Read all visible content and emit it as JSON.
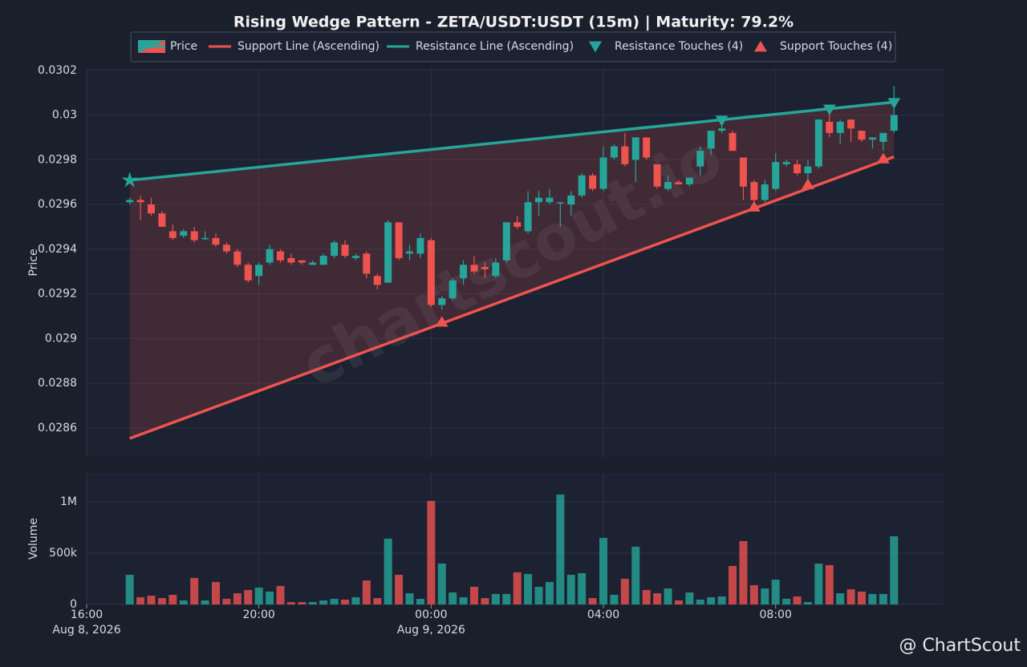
{
  "chart_data": [
    {
      "type": "candlestick",
      "title": "Rising Wedge Pattern - ZETA/USDT:USDT (15m) | Maturity: 79.2%",
      "y_label": "Price",
      "watermark": "chartscout.io",
      "footer": "@ ChartScout",
      "grid": true,
      "up_color": "#26a69a",
      "down_color": "#ef5350",
      "xlim": [
        "2026-08-08T16:00",
        "2026-08-09T11:54"
      ],
      "ylim": [
        0.02847,
        0.03021
      ],
      "yticks": [
        0.0286,
        0.0288,
        0.029,
        0.0292,
        0.0294,
        0.0296,
        0.0298,
        0.03,
        0.0302
      ],
      "x": [
        "2026-08-08T17:00",
        "2026-08-08T17:15",
        "2026-08-08T17:30",
        "2026-08-08T17:45",
        "2026-08-08T18:00",
        "2026-08-08T18:15",
        "2026-08-08T18:30",
        "2026-08-08T18:45",
        "2026-08-08T19:00",
        "2026-08-08T19:15",
        "2026-08-08T19:30",
        "2026-08-08T19:45",
        "2026-08-08T20:00",
        "2026-08-08T20:15",
        "2026-08-08T20:30",
        "2026-08-08T20:45",
        "2026-08-08T21:00",
        "2026-08-08T21:15",
        "2026-08-08T21:30",
        "2026-08-08T21:45",
        "2026-08-08T22:00",
        "2026-08-08T22:15",
        "2026-08-08T22:30",
        "2026-08-08T22:45",
        "2026-08-08T23:00",
        "2026-08-08T23:15",
        "2026-08-08T23:30",
        "2026-08-08T23:45",
        "2026-08-09T00:00",
        "2026-08-09T00:15",
        "2026-08-09T00:30",
        "2026-08-09T00:45",
        "2026-08-09T01:00",
        "2026-08-09T01:15",
        "2026-08-09T01:30",
        "2026-08-09T01:45",
        "2026-08-09T02:00",
        "2026-08-09T02:15",
        "2026-08-09T02:30",
        "2026-08-09T02:45",
        "2026-08-09T03:00",
        "2026-08-09T03:15",
        "2026-08-09T03:30",
        "2026-08-09T03:45",
        "2026-08-09T04:00",
        "2026-08-09T04:15",
        "2026-08-09T04:30",
        "2026-08-09T04:45",
        "2026-08-09T05:00",
        "2026-08-09T05:15",
        "2026-08-09T05:30",
        "2026-08-09T05:45",
        "2026-08-09T06:00",
        "2026-08-09T06:15",
        "2026-08-09T06:30",
        "2026-08-09T06:45",
        "2026-08-09T07:00",
        "2026-08-09T07:15",
        "2026-08-09T07:30",
        "2026-08-09T07:45",
        "2026-08-09T08:00",
        "2026-08-09T08:15",
        "2026-08-09T08:30",
        "2026-08-09T08:45",
        "2026-08-09T09:00",
        "2026-08-09T09:15",
        "2026-08-09T09:30",
        "2026-08-09T09:45",
        "2026-08-09T10:00",
        "2026-08-09T10:15",
        "2026-08-09T10:30",
        "2026-08-09T10:45"
      ],
      "candles": {
        "name": "Price",
        "open": [
          0.02961,
          0.02962,
          0.0296,
          0.02956,
          0.02948,
          0.02946,
          0.02948,
          0.02945,
          0.02945,
          0.02942,
          0.02939,
          0.02933,
          0.02928,
          0.02934,
          0.02939,
          0.02936,
          0.02935,
          0.02933,
          0.02933,
          0.02937,
          0.02942,
          0.02936,
          0.02938,
          0.02928,
          0.02925,
          0.02952,
          0.02938,
          0.02938,
          0.02944,
          0.02915,
          0.02918,
          0.02927,
          0.02933,
          0.02932,
          0.02928,
          0.02935,
          0.02952,
          0.02948,
          0.02961,
          0.02961,
          0.02961,
          0.0296,
          0.02964,
          0.02973,
          0.02967,
          0.02981,
          0.02986,
          0.0298,
          0.0299,
          0.02978,
          0.02967,
          0.0297,
          0.02969,
          0.02977,
          0.02985,
          0.02993,
          0.02992,
          0.02981,
          0.0297,
          0.02962,
          0.02967,
          0.02978,
          0.02978,
          0.02974,
          0.02977,
          0.02997,
          0.02992,
          0.02998,
          0.02993,
          0.02989,
          0.02988,
          0.02993
        ],
        "high": [
          0.02963,
          0.02964,
          0.02963,
          0.02957,
          0.02951,
          0.02949,
          0.0295,
          0.02948,
          0.02947,
          0.02943,
          0.0294,
          0.02934,
          0.02934,
          0.02942,
          0.0294,
          0.02938,
          0.02935,
          0.02935,
          0.02938,
          0.02944,
          0.02944,
          0.02938,
          0.02939,
          0.02929,
          0.02953,
          0.02952,
          0.02942,
          0.02947,
          0.02945,
          0.02919,
          0.02927,
          0.02935,
          0.02937,
          0.02934,
          0.02936,
          0.02952,
          0.02955,
          0.02966,
          0.02966,
          0.02967,
          0.02961,
          0.02966,
          0.02974,
          0.02974,
          0.02986,
          0.02987,
          0.02992,
          0.0299,
          0.0299,
          0.02978,
          0.02973,
          0.02971,
          0.02972,
          0.02986,
          0.02993,
          0.02997,
          0.02993,
          0.02981,
          0.02971,
          0.02971,
          0.02983,
          0.0298,
          0.0298,
          0.0298,
          0.02998,
          0.03001,
          0.02998,
          0.02998,
          0.02993,
          0.0299,
          0.02992,
          0.03013
        ],
        "low": [
          0.0296,
          0.02953,
          0.02955,
          0.0295,
          0.02944,
          0.02945,
          0.02943,
          0.02944,
          0.02941,
          0.02938,
          0.02932,
          0.02925,
          0.02924,
          0.02933,
          0.02934,
          0.02933,
          0.02933,
          0.02933,
          0.02933,
          0.02936,
          0.02936,
          0.02935,
          0.02927,
          0.02922,
          0.02925,
          0.02935,
          0.02935,
          0.02936,
          0.02914,
          0.02913,
          0.02917,
          0.02924,
          0.02929,
          0.02927,
          0.02927,
          0.02934,
          0.02949,
          0.02947,
          0.02955,
          0.0296,
          0.0295,
          0.02955,
          0.02963,
          0.02966,
          0.02966,
          0.0298,
          0.02977,
          0.0297,
          0.0298,
          0.02967,
          0.02966,
          0.02969,
          0.02968,
          0.02973,
          0.02982,
          0.02992,
          0.02984,
          0.02962,
          0.02959,
          0.02961,
          0.02966,
          0.02977,
          0.02973,
          0.0297,
          0.02976,
          0.0299,
          0.02987,
          0.02988,
          0.02988,
          0.02985,
          0.02984,
          0.02992
        ],
        "close": [
          0.02962,
          0.02961,
          0.02956,
          0.0295,
          0.02945,
          0.02948,
          0.02944,
          0.02945,
          0.02942,
          0.02939,
          0.02933,
          0.02926,
          0.02933,
          0.0294,
          0.02935,
          0.02934,
          0.02934,
          0.02934,
          0.02937,
          0.02943,
          0.02937,
          0.02937,
          0.02929,
          0.02924,
          0.02952,
          0.02936,
          0.02939,
          0.02945,
          0.02915,
          0.02918,
          0.02926,
          0.02933,
          0.0293,
          0.02931,
          0.02934,
          0.02952,
          0.0295,
          0.02961,
          0.02963,
          0.02963,
          0.02961,
          0.02964,
          0.02973,
          0.02967,
          0.02981,
          0.02986,
          0.02978,
          0.0299,
          0.02981,
          0.02968,
          0.0297,
          0.02969,
          0.02972,
          0.02984,
          0.02993,
          0.02994,
          0.02984,
          0.02968,
          0.02962,
          0.02969,
          0.02979,
          0.02979,
          0.02974,
          0.02977,
          0.02998,
          0.02992,
          0.02997,
          0.02994,
          0.02989,
          0.0299,
          0.02992,
          0.03
        ]
      },
      "series": [
        {
          "name": "Support Line (Ascending)",
          "color": "#ef5350",
          "x": [
            "2026-08-08T17:00",
            "2026-08-09T10:45"
          ],
          "values": [
            0.028553,
            0.029813
          ]
        },
        {
          "name": "Resistance Line (Ascending)",
          "color": "#26a69a",
          "x": [
            "2026-08-08T17:00",
            "2026-08-09T10:45"
          ],
          "values": [
            0.029708,
            0.030058
          ]
        },
        {
          "name": "Resistance Touches (4)",
          "color": "#26a69a",
          "markers": [
            "star",
            "triangle-down",
            "triangle-down",
            "triangle-down"
          ],
          "x": [
            "2026-08-08T17:00",
            "2026-08-09T06:45",
            "2026-08-09T09:15",
            "2026-08-09T10:45"
          ],
          "values": [
            0.029708,
            0.029975,
            0.030025,
            0.030054
          ]
        },
        {
          "name": "Support Touches (4)",
          "color": "#ef5350",
          "markers": [
            "triangle-up",
            "triangle-up",
            "triangle-up",
            "triangle-up"
          ],
          "x": [
            "2026-08-09T00:15",
            "2026-08-09T07:30",
            "2026-08-09T08:45",
            "2026-08-09T10:30"
          ],
          "values": [
            0.029075,
            0.02959,
            0.02969,
            0.029806
          ]
        }
      ]
    },
    {
      "type": "bar",
      "y_label": "Volume",
      "grid": true,
      "xlim": [
        "2026-08-08T16:00",
        "2026-08-09T11:54"
      ],
      "ylim": [
        0,
        1280000
      ],
      "yticks": [
        0,
        {
          "value": 500000,
          "label": "500k"
        },
        {
          "value": 1000000,
          "label": "1M"
        }
      ],
      "xticks": [
        {
          "value": "2026-08-08T16:00",
          "label": "16:00\nAug 8, 2026"
        },
        {
          "value": "2026-08-08T20:00",
          "label": "20:00"
        },
        {
          "value": "2026-08-09T00:00",
          "label": "00:00\nAug 9, 2026"
        },
        {
          "value": "2026-08-09T04:00",
          "label": "04:00"
        },
        {
          "value": "2026-08-09T08:00",
          "label": "08:00"
        }
      ],
      "x": [
        "2026-08-08T17:00",
        "2026-08-08T17:15",
        "2026-08-08T17:30",
        "2026-08-08T17:45",
        "2026-08-08T18:00",
        "2026-08-08T18:15",
        "2026-08-08T18:30",
        "2026-08-08T18:45",
        "2026-08-08T19:00",
        "2026-08-08T19:15",
        "2026-08-08T19:30",
        "2026-08-08T19:45",
        "2026-08-08T20:00",
        "2026-08-08T20:15",
        "2026-08-08T20:30",
        "2026-08-08T20:45",
        "2026-08-08T21:00",
        "2026-08-08T21:15",
        "2026-08-08T21:30",
        "2026-08-08T21:45",
        "2026-08-08T22:00",
        "2026-08-08T22:15",
        "2026-08-08T22:30",
        "2026-08-08T22:45",
        "2026-08-08T23:00",
        "2026-08-08T23:15",
        "2026-08-08T23:30",
        "2026-08-08T23:45",
        "2026-08-09T00:00",
        "2026-08-09T00:15",
        "2026-08-09T00:30",
        "2026-08-09T00:45",
        "2026-08-09T01:00",
        "2026-08-09T01:15",
        "2026-08-09T01:30",
        "2026-08-09T01:45",
        "2026-08-09T02:00",
        "2026-08-09T02:15",
        "2026-08-09T02:30",
        "2026-08-09T02:45",
        "2026-08-09T03:00",
        "2026-08-09T03:15",
        "2026-08-09T03:30",
        "2026-08-09T03:45",
        "2026-08-09T04:00",
        "2026-08-09T04:15",
        "2026-08-09T04:30",
        "2026-08-09T04:45",
        "2026-08-09T05:00",
        "2026-08-09T05:15",
        "2026-08-09T05:30",
        "2026-08-09T05:45",
        "2026-08-09T06:00",
        "2026-08-09T06:15",
        "2026-08-09T06:30",
        "2026-08-09T06:45",
        "2026-08-09T07:00",
        "2026-08-09T07:15",
        "2026-08-09T07:30",
        "2026-08-09T07:45",
        "2026-08-09T08:00",
        "2026-08-09T08:15",
        "2026-08-09T08:30",
        "2026-08-09T08:45",
        "2026-08-09T09:00",
        "2026-08-09T09:15",
        "2026-08-09T09:30",
        "2026-08-09T09:45",
        "2026-08-09T10:00",
        "2026-08-09T10:15",
        "2026-08-09T10:30",
        "2026-08-09T10:45"
      ],
      "values": [
        289000,
        70000,
        86000,
        62000,
        94000,
        39000,
        258000,
        39000,
        219000,
        55000,
        109000,
        141000,
        164000,
        125000,
        180000,
        23000,
        23000,
        23000,
        39000,
        55000,
        47000,
        70000,
        234000,
        62000,
        641000,
        289000,
        109000,
        55000,
        1008000,
        398000,
        117000,
        70000,
        172000,
        62000,
        102000,
        102000,
        313000,
        297000,
        172000,
        219000,
        1070000,
        289000,
        305000,
        62000,
        648000,
        94000,
        250000,
        563000,
        141000,
        109000,
        156000,
        39000,
        117000,
        47000,
        70000,
        78000,
        375000,
        617000,
        188000,
        156000,
        242000,
        55000,
        78000,
        23000,
        398000,
        383000,
        109000,
        148000,
        125000,
        102000,
        102000,
        664000
      ]
    }
  ]
}
